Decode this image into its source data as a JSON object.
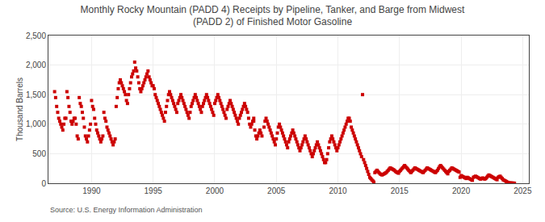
{
  "chart_data": {
    "type": "scatter",
    "title": "Monthly Rocky Mountain (PADD 4) Receipts by Pipeline, Tanker, and Barge from Midwest\n(PADD 2) of Finished Motor Gasoline",
    "ylabel": "Thousand Barrels",
    "annotations": [
      "Source: U.S. Energy Information Administration"
    ],
    "color": "#cc0000",
    "marker": "square",
    "grid": true,
    "xlim": [
      1986.5,
      2025.5
    ],
    "ylim": [
      0,
      2500
    ],
    "xticks": [
      1990,
      1995,
      2000,
      2005,
      2010,
      2015,
      2020,
      2025
    ],
    "yticks": [
      0,
      500,
      {
        "value": 1000,
        "label": "1,000"
      },
      {
        "value": 1500,
        "label": "1,500"
      },
      {
        "value": 2000,
        "label": "2,000"
      },
      {
        "value": 2500,
        "label": "2,500"
      }
    ],
    "x": [
      1987.0,
      1987.083,
      1987.167,
      1987.25,
      1987.333,
      1987.417,
      1987.5,
      1987.583,
      1987.667,
      1987.75,
      1987.833,
      1987.917,
      1988.0,
      1988.083,
      1988.167,
      1988.25,
      1988.333,
      1988.417,
      1988.5,
      1988.583,
      1988.667,
      1988.75,
      1988.833,
      1988.917,
      1989.0,
      1989.083,
      1989.167,
      1989.25,
      1989.333,
      1989.417,
      1989.5,
      1989.583,
      1989.667,
      1989.75,
      1989.833,
      1989.917,
      1990.0,
      1990.083,
      1990.167,
      1990.25,
      1990.333,
      1990.417,
      1990.5,
      1990.583,
      1990.667,
      1990.75,
      1990.833,
      1990.917,
      1991.0,
      1991.083,
      1991.167,
      1991.25,
      1991.333,
      1991.417,
      1991.5,
      1991.583,
      1991.667,
      1991.75,
      1991.833,
      1991.917,
      1992.0,
      1992.083,
      1992.167,
      1992.25,
      1992.333,
      1992.417,
      1992.5,
      1992.583,
      1992.667,
      1992.75,
      1992.833,
      1992.917,
      1993.0,
      1993.083,
      1993.167,
      1993.25,
      1993.333,
      1993.417,
      1993.5,
      1993.583,
      1993.667,
      1993.75,
      1993.833,
      1993.917,
      1994.0,
      1994.083,
      1994.167,
      1994.25,
      1994.333,
      1994.417,
      1994.5,
      1994.583,
      1994.667,
      1994.75,
      1994.833,
      1994.917,
      1995.0,
      1995.083,
      1995.167,
      1995.25,
      1995.333,
      1995.417,
      1995.5,
      1995.583,
      1995.667,
      1995.75,
      1995.833,
      1995.917,
      1996.0,
      1996.083,
      1996.167,
      1996.25,
      1996.333,
      1996.417,
      1996.5,
      1996.583,
      1996.667,
      1996.75,
      1996.833,
      1996.917,
      1997.0,
      1997.083,
      1997.167,
      1997.25,
      1997.333,
      1997.417,
      1997.5,
      1997.583,
      1997.667,
      1997.75,
      1997.833,
      1997.917,
      1998.0,
      1998.083,
      1998.167,
      1998.25,
      1998.333,
      1998.417,
      1998.5,
      1998.583,
      1998.667,
      1998.75,
      1998.833,
      1998.917,
      1999.0,
      1999.083,
      1999.167,
      1999.25,
      1999.333,
      1999.417,
      1999.5,
      1999.583,
      1999.667,
      1999.75,
      1999.833,
      1999.917,
      2000.0,
      2000.083,
      2000.167,
      2000.25,
      2000.333,
      2000.417,
      2000.5,
      2000.583,
      2000.667,
      2000.75,
      2000.833,
      2000.917,
      2001.0,
      2001.083,
      2001.167,
      2001.25,
      2001.333,
      2001.417,
      2001.5,
      2001.583,
      2001.667,
      2001.75,
      2001.833,
      2001.917,
      2002.0,
      2002.083,
      2002.167,
      2002.25,
      2002.333,
      2002.417,
      2002.5,
      2002.583,
      2002.667,
      2002.75,
      2002.833,
      2002.917,
      2003.0,
      2003.083,
      2003.167,
      2003.167,
      2003.25,
      2003.333,
      2003.417,
      2003.5,
      2003.583,
      2003.667,
      2003.75,
      2003.833,
      2004.0,
      2004.083,
      2004.167,
      2004.25,
      2004.333,
      2004.417,
      2004.5,
      2004.583,
      2004.667,
      2004.75,
      2004.833,
      2004.917,
      2005.0,
      2005.083,
      2005.167,
      2005.25,
      2005.333,
      2005.417,
      2005.5,
      2005.583,
      2005.667,
      2005.75,
      2005.833,
      2005.917,
      2006.0,
      2006.083,
      2006.167,
      2006.25,
      2006.333,
      2006.417,
      2006.5,
      2006.583,
      2006.667,
      2006.75,
      2006.833,
      2006.917,
      2007.0,
      2007.083,
      2007.167,
      2007.25,
      2007.333,
      2007.417,
      2007.5,
      2007.583,
      2007.667,
      2007.75,
      2007.833,
      2007.917,
      2008.0,
      2008.083,
      2008.167,
      2008.25,
      2008.333,
      2008.417,
      2008.5,
      2008.583,
      2008.667,
      2008.75,
      2008.833,
      2008.917,
      2009.0,
      2009.083,
      2009.167,
      2009.25,
      2009.333,
      2009.417,
      2009.5,
      2009.583,
      2009.667,
      2009.75,
      2009.833,
      2009.917,
      2010.0,
      2010.083,
      2010.167,
      2010.25,
      2010.333,
      2010.417,
      2010.5,
      2010.583,
      2010.667,
      2010.75,
      2010.833,
      2010.917,
      2011.0,
      2011.083,
      2011.167,
      2011.25,
      2011.333,
      2011.417,
      2011.5,
      2011.583,
      2011.667,
      2011.75,
      2011.833,
      2011.917,
      2012.0,
      2012.083,
      2012.167,
      2012.25,
      2012.333,
      2012.417,
      2012.5,
      2012.583,
      2012.667,
      2012.75,
      2012.833,
      2012.917,
      2013.0,
      2013.083,
      2013.167,
      2013.25,
      2013.333,
      2013.417,
      2013.5,
      2013.583,
      2013.667,
      2013.75,
      2013.833,
      2013.917,
      2014.0,
      2014.083,
      2014.167,
      2014.25,
      2014.333,
      2014.417,
      2014.5,
      2014.583,
      2014.667,
      2014.75,
      2014.833,
      2014.917,
      2015.0,
      2015.083,
      2015.167,
      2015.25,
      2015.333,
      2015.417,
      2015.5,
      2015.583,
      2015.667,
      2015.75,
      2015.833,
      2015.917,
      2016.0,
      2016.083,
      2016.167,
      2016.25,
      2016.333,
      2016.417,
      2016.5,
      2016.583,
      2016.667,
      2016.75,
      2016.833,
      2016.917,
      2017.0,
      2017.083,
      2017.167,
      2017.25,
      2017.333,
      2017.417,
      2017.5,
      2017.583,
      2017.667,
      2017.75,
      2017.833,
      2017.917,
      2018.0,
      2018.083,
      2018.167,
      2018.25,
      2018.333,
      2018.417,
      2018.5,
      2018.583,
      2018.667,
      2018.75,
      2018.833,
      2018.917,
      2019.0,
      2019.083,
      2019.167,
      2019.25,
      2019.333,
      2019.417,
      2019.5,
      2019.583,
      2019.667,
      2019.75,
      2019.833,
      2019.917,
      2020.0,
      2020.083,
      2020.167,
      2020.25,
      2020.333,
      2020.417,
      2020.5,
      2020.583,
      2020.667,
      2020.75,
      2020.833,
      2020.917,
      2021.0,
      2021.083,
      2021.167,
      2021.25,
      2021.333,
      2021.417,
      2021.5,
      2021.583,
      2021.667,
      2021.75,
      2021.833,
      2021.917,
      2022.0,
      2022.083,
      2022.167,
      2022.25,
      2022.333,
      2022.417,
      2022.5,
      2022.583,
      2022.667,
      2022.75,
      2022.833,
      2022.917,
      2023.0,
      2023.083,
      2023.167,
      2023.25,
      2023.333,
      2023.417,
      2023.5,
      2023.583,
      2023.667,
      2023.75,
      2023.833,
      2023.917,
      2024.0,
      2024.083,
      2024.167,
      2024.25,
      2024.333
    ],
    "values": [
      1550,
      1450,
      1300,
      1200,
      1100,
      1050,
      1000,
      950,
      900,
      1000,
      1100,
      1100,
      1550,
      1450,
      1300,
      1200,
      1050,
      1000,
      1050,
      1100,
      1100,
      1000,
      800,
      750,
      1450,
      1350,
      1300,
      1200,
      1100,
      950,
      800,
      750,
      700,
      800,
      900,
      1000,
      1400,
      1300,
      1250,
      1100,
      1000,
      900,
      850,
      800,
      750,
      700,
      750,
      800,
      1200,
      1100,
      1050,
      950,
      900,
      850,
      800,
      750,
      700,
      650,
      700,
      750,
      1300,
      1450,
      1600,
      1700,
      1750,
      1700,
      1650,
      1600,
      1550,
      1500,
      1400,
      1350,
      1500,
      1600,
      1700,
      1800,
      1850,
      1900,
      2050,
      1950,
      1900,
      1800,
      1700,
      1600,
      1550,
      1600,
      1650,
      1700,
      1750,
      1800,
      1850,
      1900,
      1800,
      1750,
      1700,
      1650,
      1650,
      1600,
      1500,
      1450,
      1400,
      1350,
      1300,
      1250,
      1200,
      1150,
      1100,
      1050,
      1200,
      1300,
      1400,
      1500,
      1550,
      1500,
      1450,
      1400,
      1350,
      1300,
      1250,
      1200,
      1350,
      1400,
      1450,
      1500,
      1450,
      1400,
      1350,
      1300,
      1250,
      1200,
      1150,
      1100,
      1200,
      1300,
      1350,
      1400,
      1450,
      1500,
      1450,
      1400,
      1350,
      1300,
      1250,
      1200,
      1300,
      1350,
      1400,
      1450,
      1500,
      1450,
      1400,
      1350,
      1300,
      1250,
      1200,
      1150,
      1350,
      1400,
      1450,
      1500,
      1450,
      1400,
      1350,
      1300,
      1250,
      1200,
      1150,
      1100,
      1250,
      1300,
      1350,
      1400,
      1350,
      1300,
      1250,
      1200,
      1150,
      1100,
      1050,
      1000,
      1100,
      1150,
      1200,
      1250,
      1300,
      1350,
      1300,
      1250,
      1200,
      1100,
      1000,
      950,
      1000,
      1050,
      1100,
      1050,
      900,
      800,
      750,
      800,
      850,
      900,
      850,
      800,
      950,
      1050,
      1100,
      1050,
      1000,
      950,
      900,
      850,
      800,
      750,
      700,
      650,
      750,
      850,
      950,
      1000,
      950,
      900,
      850,
      800,
      750,
      700,
      650,
      600,
      700,
      750,
      800,
      850,
      900,
      850,
      800,
      750,
      700,
      650,
      600,
      550,
      600,
      650,
      700,
      750,
      800,
      750,
      700,
      650,
      600,
      550,
      500,
      450,
      500,
      550,
      600,
      650,
      700,
      650,
      600,
      550,
      500,
      450,
      400,
      350,
      350,
      400,
      500,
      600,
      700,
      750,
      800,
      750,
      700,
      650,
      600,
      550,
      600,
      650,
      700,
      750,
      800,
      850,
      900,
      950,
      1000,
      1050,
      1100,
      1100,
      1050,
      950,
      900,
      850,
      800,
      750,
      700,
      650,
      600,
      550,
      500,
      450,
      1500,
      400,
      350,
      300,
      250,
      200,
      150,
      100,
      80,
      60,
      40,
      20,
      180,
      200,
      220,
      200,
      180,
      160,
      150,
      140,
      150,
      160,
      170,
      180,
      200,
      220,
      240,
      260,
      250,
      240,
      230,
      220,
      200,
      190,
      180,
      170,
      200,
      220,
      240,
      260,
      280,
      300,
      280,
      260,
      240,
      220,
      200,
      180,
      200,
      220,
      240,
      260,
      250,
      240,
      230,
      220,
      210,
      200,
      190,
      180,
      200,
      220,
      240,
      260,
      250,
      240,
      230,
      220,
      210,
      200,
      190,
      180,
      200,
      220,
      250,
      280,
      300,
      280,
      260,
      240,
      220,
      200,
      180,
      160,
      200,
      220,
      240,
      260,
      250,
      240,
      230,
      220,
      210,
      200,
      190,
      100,
      130,
      120,
      110,
      100,
      90,
      80,
      100,
      90,
      80,
      70,
      60,
      50,
      100,
      110,
      120,
      110,
      100,
      90,
      80,
      70,
      80,
      90,
      80,
      70,
      80,
      100,
      120,
      140,
      130,
      120,
      110,
      100,
      90,
      80,
      70,
      60,
      100,
      110,
      120,
      100,
      80,
      60,
      50,
      40,
      30,
      20,
      10,
      5,
      5,
      4,
      3,
      2,
      1
    ]
  }
}
